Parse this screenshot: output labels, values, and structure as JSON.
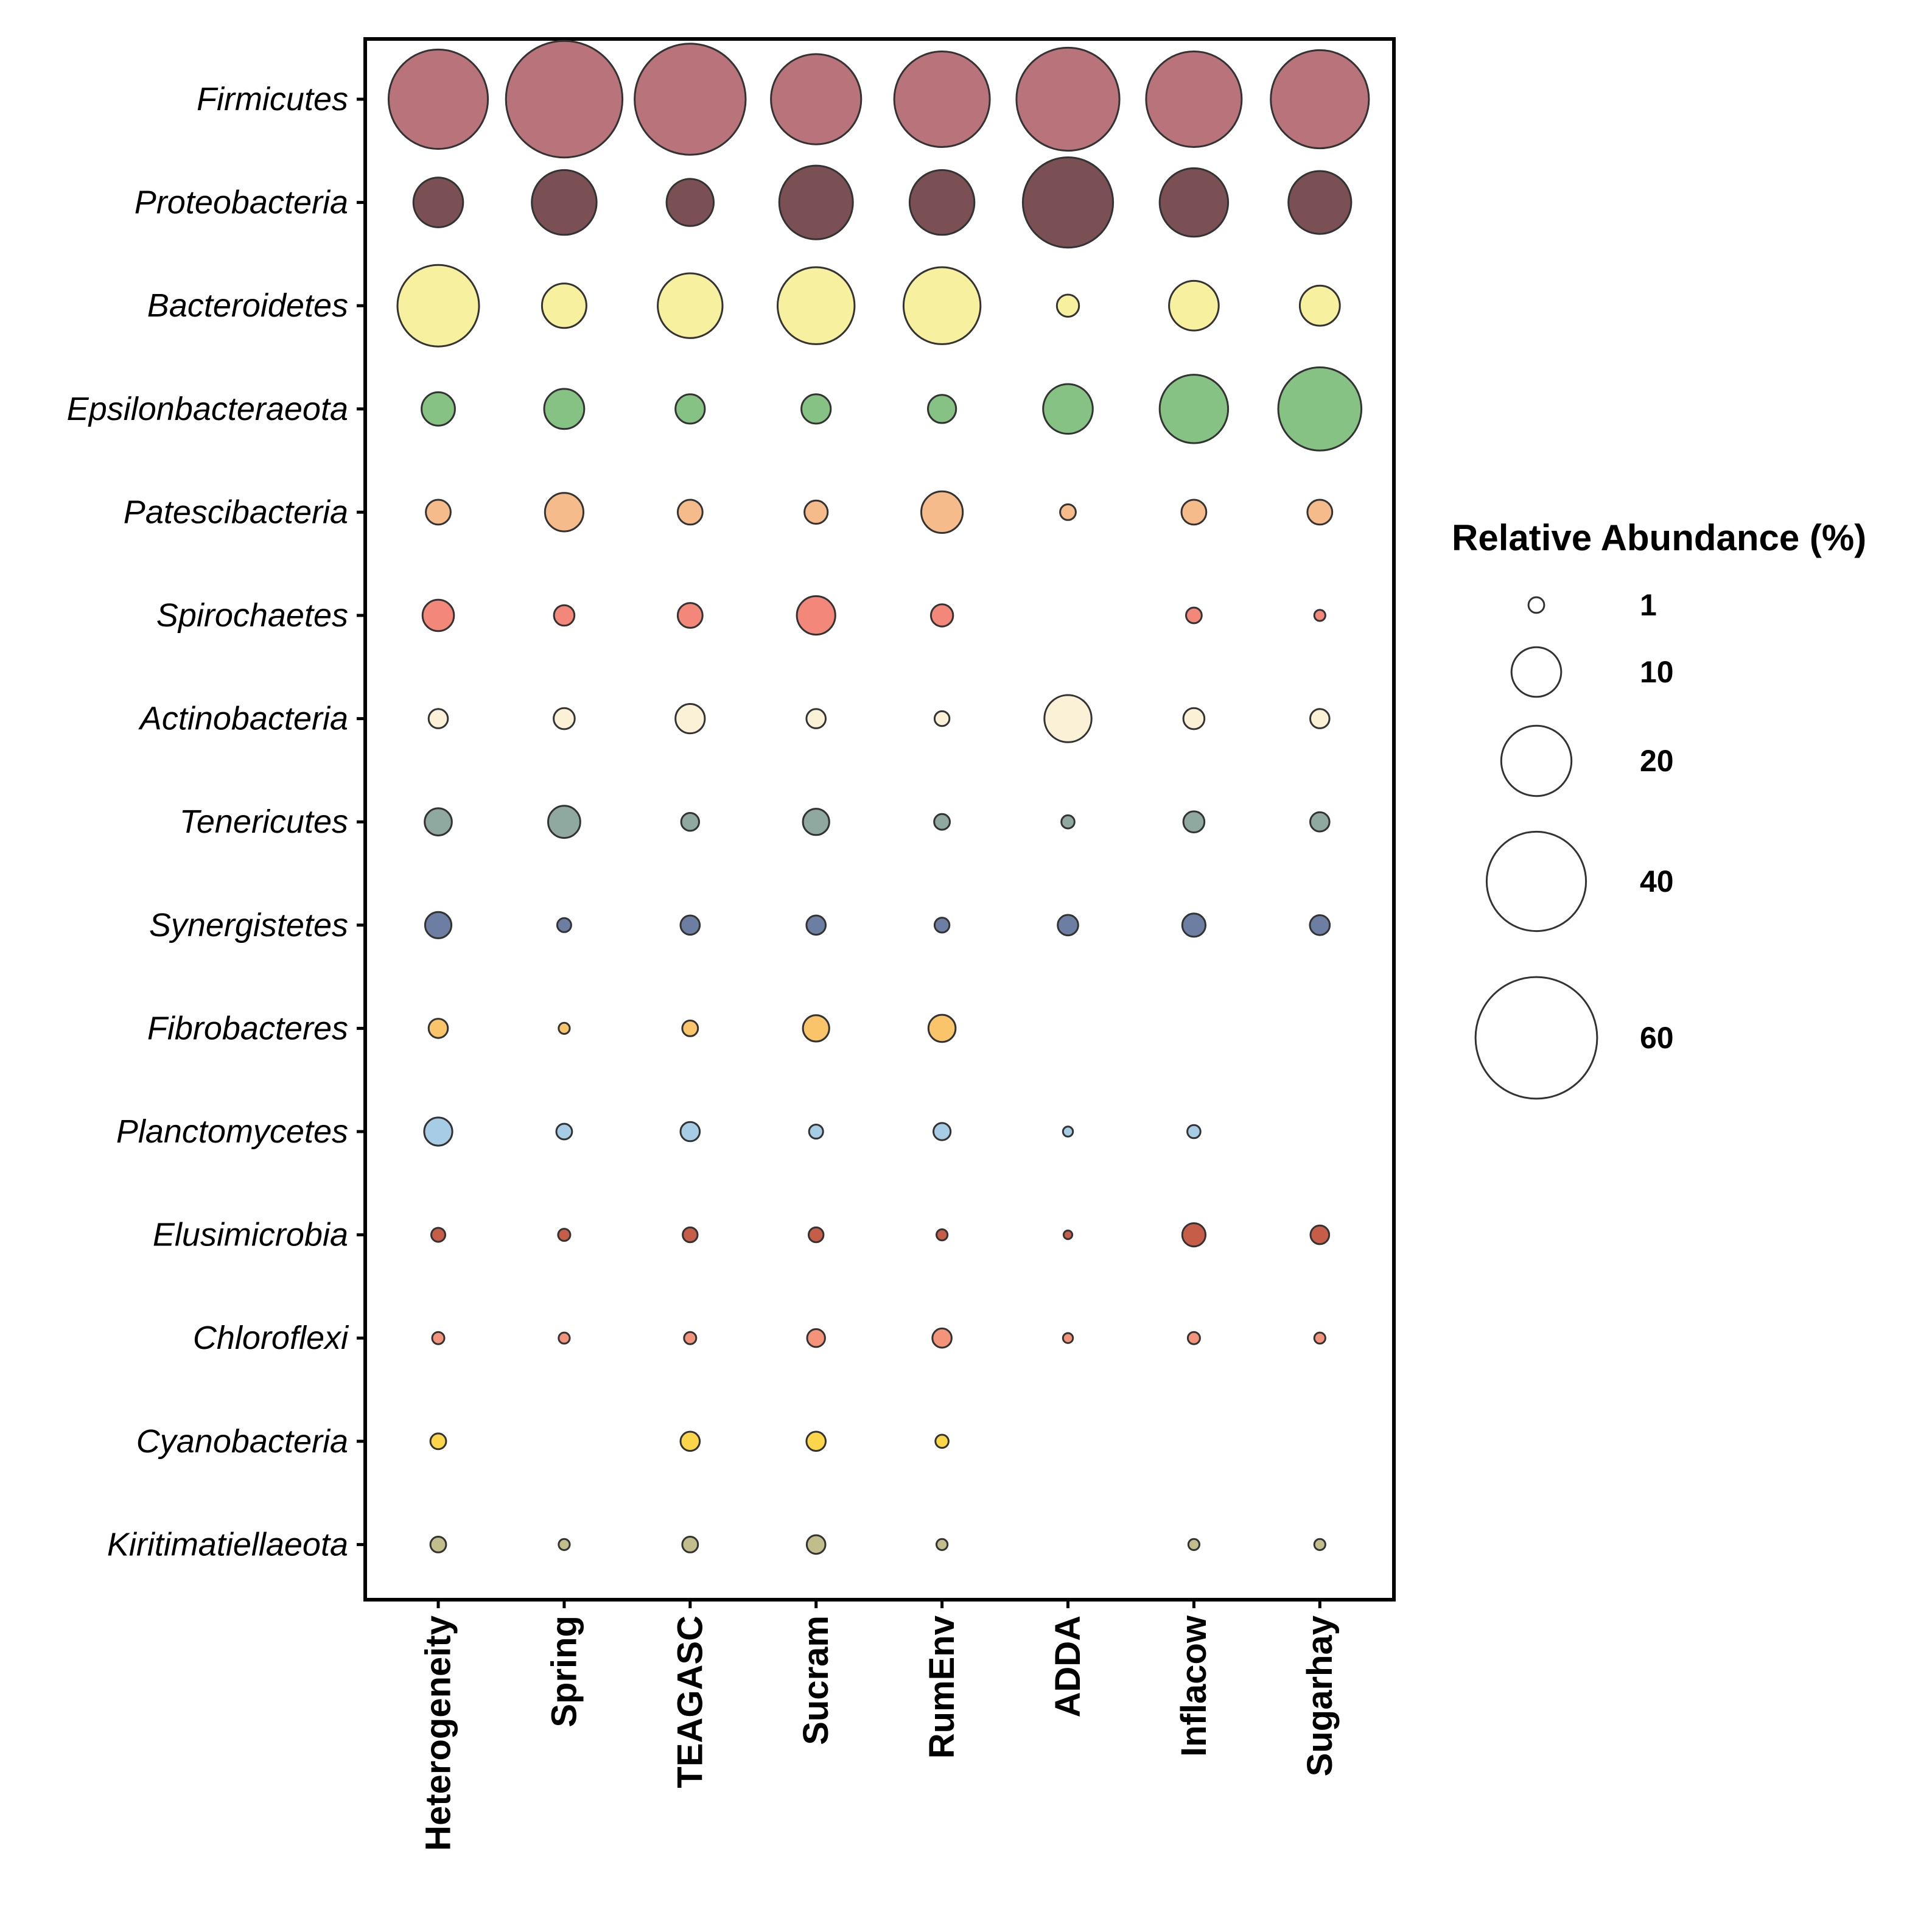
{
  "chart_data": {
    "type": "bubble",
    "categories": [
      "Heterogeneity",
      "Spring",
      "TEAGASC",
      "Sucram",
      "RumEnv",
      "ADDA",
      "Inflacow",
      "Sugarhay"
    ],
    "series": [
      {
        "name": "Firmicutes",
        "color": "#B9737A",
        "values": [
          40,
          55,
          50,
          33,
          37,
          43,
          37,
          39
        ]
      },
      {
        "name": "Proteobacteria",
        "color": "#7A5055",
        "values": [
          10,
          17,
          9,
          22,
          17,
          33,
          19,
          16
        ]
      },
      {
        "name": "Bacteroidetes",
        "color": "#F7F09E",
        "values": [
          27,
          8,
          17,
          24,
          24,
          2,
          10,
          6.5
        ]
      },
      {
        "name": "Epsilonbacteraeota",
        "color": "#85C283",
        "values": [
          4.5,
          6.5,
          3.5,
          3.5,
          3.2,
          10,
          19,
          28
        ]
      },
      {
        "name": "Patescibacteria",
        "color": "#F6BB8A",
        "values": [
          2.5,
          6,
          2.5,
          2.2,
          7,
          1,
          2.5,
          2.5
        ]
      },
      {
        "name": "Spirochaetes",
        "color": "#F2877A",
        "values": [
          4,
          1.7,
          2.5,
          6,
          2,
          0,
          1,
          0.5
        ]
      },
      {
        "name": "Actinobacteria",
        "color": "#FBF1D6",
        "values": [
          1.5,
          1.8,
          3.5,
          1.5,
          0.9,
          9,
          1.8,
          1.5
        ]
      },
      {
        "name": "Tenericutes",
        "color": "#8FA9A0",
        "values": [
          3,
          4.2,
          1.3,
          2.8,
          1,
          0.7,
          1.8,
          1.5
        ]
      },
      {
        "name": "Synergistetes",
        "color": "#6C7FA3",
        "values": [
          2.8,
          0.8,
          1.5,
          1.5,
          0.9,
          1.7,
          2.2,
          1.6
        ]
      },
      {
        "name": "Fibrobacteres",
        "color": "#F9C46A",
        "values": [
          1.5,
          0.5,
          1,
          2.8,
          3,
          0,
          0,
          0
        ]
      },
      {
        "name": "Planctomycetes",
        "color": "#A6CCE6",
        "values": [
          3.2,
          1,
          1.5,
          0.8,
          1.2,
          0.4,
          0.7,
          0
        ]
      },
      {
        "name": "Elusimicrobia",
        "color": "#C65D49",
        "values": [
          0.8,
          0.6,
          0.9,
          0.9,
          0.5,
          0.3,
          2.2,
          1.4
        ]
      },
      {
        "name": "Chloroflexi",
        "color": "#F3947A",
        "values": [
          0.6,
          0.5,
          0.6,
          1.3,
          1.5,
          0.4,
          0.6,
          0.5
        ]
      },
      {
        "name": "Cyanobacteria",
        "color": "#FBD64A",
        "values": [
          1,
          0,
          1.5,
          1.5,
          0.7,
          0,
          0,
          0
        ]
      },
      {
        "name": "Kiritimatiellaeota",
        "color": "#C2BE8C",
        "values": [
          1,
          0.5,
          1,
          1.4,
          0.5,
          0,
          0.5,
          0.5
        ]
      }
    ],
    "legend": {
      "title": "Relative Abundance (%)",
      "sizes": [
        1,
        10,
        20,
        40,
        60
      ],
      "labels": [
        "1",
        "10",
        "20",
        "40",
        "60"
      ],
      "placement": "right"
    },
    "grid": false
  }
}
